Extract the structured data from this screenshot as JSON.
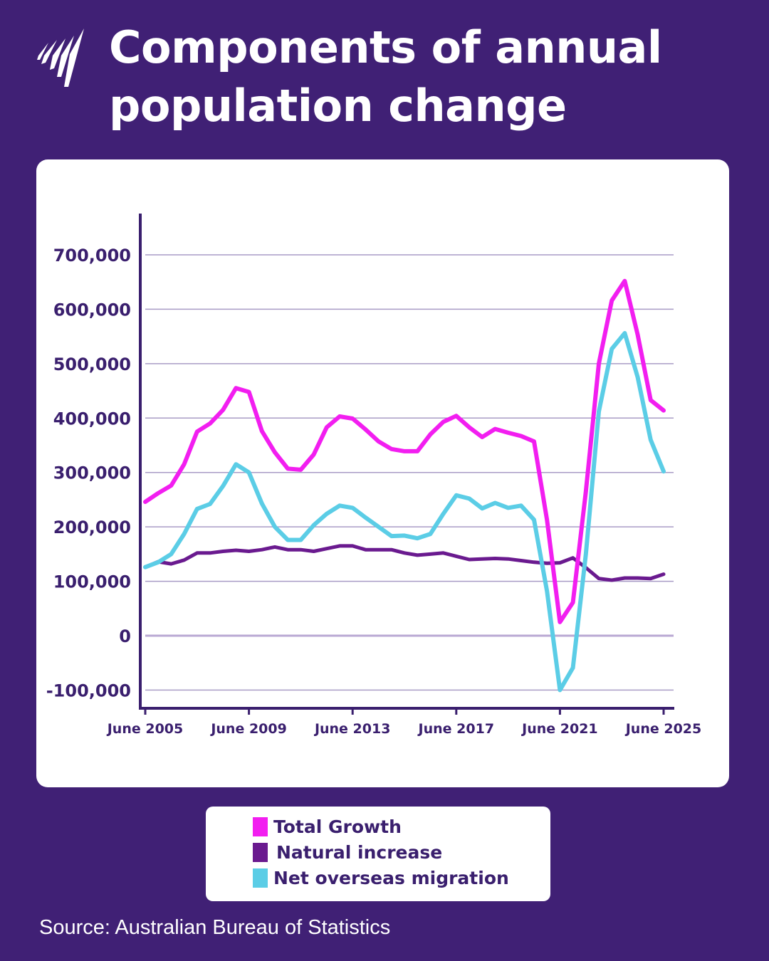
{
  "header": {
    "title_line1": "Components of annual",
    "title_line2": "population change",
    "logo": "sbs-logo"
  },
  "source": "Source: Australian Bureau of Statistics",
  "colors": {
    "background": "#402075",
    "total_growth": "#f21ef0",
    "natural_increase": "#6a1a8f",
    "net_overseas_migration": "#5bcde6",
    "text": "#3a1f6e"
  },
  "chart_data": {
    "type": "line",
    "title": "Components of annual population change",
    "xlabel": "",
    "ylabel": "",
    "ylim": [
      -100000,
      700000
    ],
    "yticks": [
      -100000,
      0,
      100000,
      200000,
      300000,
      400000,
      500000,
      600000,
      700000
    ],
    "ytick_labels": [
      "-100,000",
      "0",
      "100,000",
      "200,000",
      "300,000",
      "400,000",
      "500,000",
      "600,000",
      "700,000"
    ],
    "xtick_labels": [
      "June 2005",
      "June 2009",
      "June 2013",
      "June 2017",
      "June 2021",
      "June 2025"
    ],
    "grid": "horizontal",
    "legend": "bottom",
    "x": [
      "Jun 2005",
      "Dec 2005",
      "Jun 2006",
      "Dec 2006",
      "Jun 2007",
      "Dec 2007",
      "Jun 2008",
      "Dec 2008",
      "Jun 2009",
      "Dec 2009",
      "Jun 2010",
      "Dec 2010",
      "Jun 2011",
      "Dec 2011",
      "Jun 2012",
      "Dec 2012",
      "Jun 2013",
      "Dec 2013",
      "Jun 2014",
      "Dec 2014",
      "Jun 2015",
      "Dec 2015",
      "Jun 2016",
      "Dec 2016",
      "Jun 2017",
      "Dec 2017",
      "Jun 2018",
      "Dec 2018",
      "Jun 2019",
      "Dec 2019",
      "Jun 2020",
      "Dec 2020",
      "Jun 2021",
      "Dec 2021",
      "Jun 2022",
      "Dec 2022",
      "Jun 2023",
      "Dec 2023",
      "Jun 2024",
      "Dec 2024",
      "Jun 2025"
    ],
    "series": [
      {
        "name": "Total Growth",
        "color": "#f21ef0",
        "values": [
          246000,
          262000,
          276000,
          315000,
          375000,
          390000,
          415000,
          455000,
          448000,
          376000,
          337000,
          307000,
          305000,
          333000,
          383000,
          403000,
          399000,
          379000,
          357000,
          343000,
          339000,
          339000,
          370000,
          393000,
          404000,
          383000,
          365000,
          380000,
          373000,
          367000,
          357000,
          213000,
          25000,
          61000,
          265000,
          500000,
          616000,
          652000,
          553000,
          433000,
          414000
        ]
      },
      {
        "name": "Natural increase",
        "color": "#6a1a8f",
        "values": [
          126000,
          136000,
          132000,
          139000,
          152000,
          152000,
          155000,
          157000,
          155000,
          158000,
          163000,
          158000,
          158000,
          155000,
          160000,
          165000,
          165000,
          158000,
          158000,
          158000,
          152000,
          148000,
          150000,
          152000,
          146000,
          140000,
          141000,
          142000,
          141000,
          138000,
          135000,
          133000,
          134000,
          143000,
          125000,
          105000,
          102000,
          106000,
          106000,
          105000,
          113000
        ]
      },
      {
        "name": "Net overseas migration",
        "color": "#5bcde6",
        "values": [
          126000,
          135000,
          150000,
          187000,
          233000,
          242000,
          275000,
          315000,
          300000,
          243000,
          200000,
          176000,
          176000,
          203000,
          224000,
          239000,
          235000,
          217000,
          200000,
          183000,
          184000,
          179000,
          187000,
          224000,
          258000,
          252000,
          234000,
          244000,
          235000,
          239000,
          213000,
          82000,
          -100000,
          -59000,
          150000,
          412000,
          527000,
          556000,
          475000,
          360000,
          302000
        ]
      }
    ]
  }
}
